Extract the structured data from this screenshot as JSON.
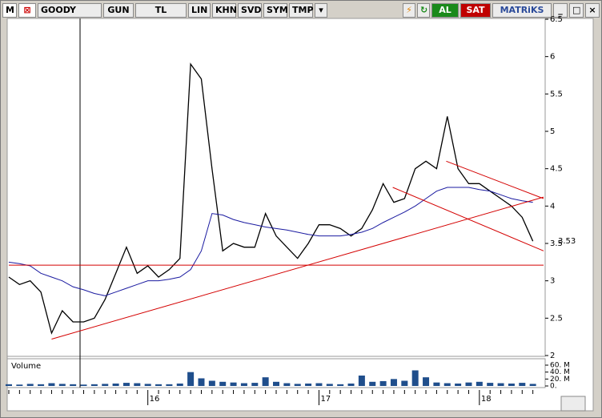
{
  "toolbar": {
    "logo": "M",
    "symbol": "GOODY",
    "period": "GUN",
    "currency": "TL",
    "buttons": [
      "LIN",
      "KHN",
      "SVD",
      "SYM",
      "TMP"
    ],
    "buy": "AL",
    "sell": "SAT",
    "brand": "MATRiKS"
  },
  "chart_data": {
    "type": "line",
    "categories": [
      null,
      null,
      null,
      null,
      null,
      null,
      null,
      null,
      null,
      null,
      null,
      null,
      null,
      "16",
      null,
      null,
      null,
      null,
      null,
      null,
      null,
      null,
      null,
      null,
      null,
      null,
      null,
      null,
      null,
      "17",
      null,
      null,
      null,
      null,
      null,
      null,
      null,
      null,
      null,
      null,
      null,
      null,
      null,
      null,
      "18",
      null,
      null,
      null,
      null,
      null
    ],
    "series": [
      {
        "color": "#000000",
        "values": [
          3.05,
          2.95,
          3.0,
          2.85,
          2.3,
          2.6,
          2.45,
          2.45,
          2.5,
          2.75,
          3.1,
          3.45,
          3.1,
          3.2,
          3.05,
          3.15,
          3.3,
          5.9,
          5.7,
          4.5,
          3.4,
          3.5,
          3.45,
          3.45,
          3.9,
          3.6,
          3.45,
          3.3,
          3.5,
          3.75,
          3.75,
          3.7,
          3.6,
          3.7,
          3.95,
          4.3,
          4.05,
          4.1,
          4.5,
          4.6,
          4.5,
          5.2,
          4.5,
          4.3,
          4.3,
          4.2,
          4.1,
          4.0,
          3.85,
          3.53
        ]
      },
      {
        "color": "#1a1aa0",
        "values": [
          3.25,
          3.23,
          3.2,
          3.1,
          3.05,
          3.0,
          2.92,
          2.88,
          2.83,
          2.8,
          2.85,
          2.9,
          2.95,
          3.0,
          3.0,
          3.02,
          3.05,
          3.15,
          3.4,
          3.9,
          3.88,
          3.82,
          3.78,
          3.75,
          3.72,
          3.7,
          3.68,
          3.65,
          3.62,
          3.6,
          3.6,
          3.6,
          3.62,
          3.65,
          3.7,
          3.78,
          3.85,
          3.92,
          4.0,
          4.1,
          4.2,
          4.25,
          4.25,
          4.25,
          4.22,
          4.2,
          4.15,
          4.1,
          4.07,
          4.05
        ]
      },
      {
        "name": "Volume",
        "axis": "y2",
        "color": "#1f4e8c",
        "values": [
          5,
          4,
          6,
          5,
          8,
          6,
          5,
          4,
          5,
          6,
          7,
          9,
          8,
          6,
          5,
          5,
          7,
          40,
          22,
          15,
          12,
          10,
          8,
          9,
          25,
          12,
          8,
          6,
          7,
          8,
          6,
          5,
          7,
          30,
          12,
          14,
          20,
          15,
          45,
          25,
          10,
          8,
          7,
          10,
          12,
          9,
          8,
          7,
          9,
          6
        ]
      }
    ],
    "trendlines": [
      {
        "color": "#d40000",
        "points": [
          [
            0,
            3.21
          ],
          [
            50,
            3.21
          ]
        ]
      },
      {
        "color": "#d40000",
        "points": [
          [
            4,
            2.22
          ],
          [
            50,
            4.12
          ]
        ]
      },
      {
        "color": "#d40000",
        "points": [
          [
            40.9,
            4.6
          ],
          [
            50,
            4.1
          ]
        ]
      },
      {
        "color": "#d40000",
        "points": [
          [
            35.9,
            4.25
          ],
          [
            50,
            3.4
          ]
        ]
      }
    ],
    "ylim": [
      2,
      6.5
    ],
    "yticks": [
      2,
      2.5,
      3,
      3.5,
      4,
      4.5,
      5,
      5.5,
      6,
      6.5
    ],
    "y2lim": [
      0,
      60
    ],
    "y2ticks": [
      {
        "value": 0,
        "label": "0."
      },
      {
        "value": 20,
        "label": "20. M"
      },
      {
        "value": 40,
        "label": "40. M"
      },
      {
        "value": 60,
        "label": "60. M"
      }
    ]
  }
}
